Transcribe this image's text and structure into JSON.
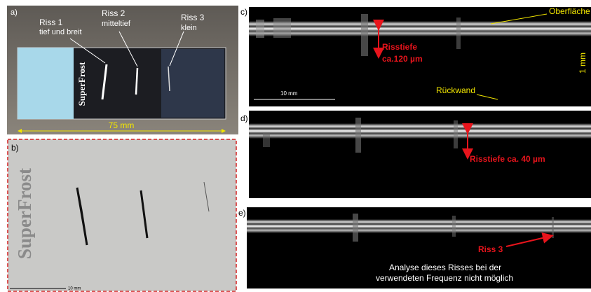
{
  "panel_a": {
    "label": "a)",
    "riss1": "Riss 1",
    "riss1_desc": "tief und breit",
    "riss2": "Riss 2",
    "riss2_desc": "mitteltief",
    "riss3": "Riss 3",
    "riss3_desc": "klein",
    "slide_text": "SuperFrost",
    "length": "75 mm"
  },
  "panel_b": {
    "label": "b)",
    "slide_text": "SuperFrost",
    "scale": "10 mm"
  },
  "panel_c": {
    "label": "c)",
    "surface": "Oberfläche",
    "depth_title": "Risstiefe",
    "depth_value": "ca.120 µm",
    "scale_x": "10 mm",
    "back_wall": "Rückwand",
    "scale_y": "1 mm"
  },
  "panel_d": {
    "label": "d)",
    "depth": "Risstiefe ca. 40 µm"
  },
  "panel_e": {
    "label": "e)",
    "crack": "Riss 3",
    "note_1": "Analyse dieses Risses bei der",
    "note_2": "verwendeten Frequenz nicht möglich"
  }
}
